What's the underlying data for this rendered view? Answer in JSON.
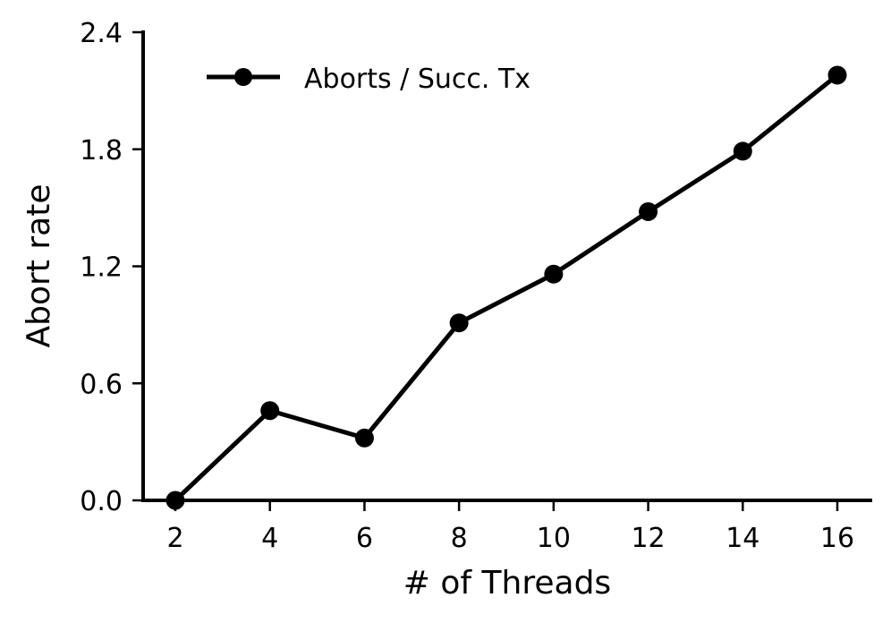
{
  "chart_data": {
    "type": "line",
    "title": "",
    "xlabel": "# of Threads",
    "ylabel": "Abort rate",
    "x": [
      2,
      4,
      6,
      8,
      10,
      12,
      14,
      16
    ],
    "series": [
      {
        "name": "Aborts / Succ. Tx",
        "values": [
          0.0,
          0.46,
          0.32,
          0.91,
          1.16,
          1.48,
          1.79,
          2.18
        ],
        "color": "#000000",
        "marker": "circle"
      }
    ],
    "xticks": [
      "2",
      "4",
      "6",
      "8",
      "10",
      "12",
      "14",
      "16"
    ],
    "yticks": [
      "0.0",
      "0.6",
      "1.2",
      "1.8",
      "2.4"
    ],
    "ylim": [
      0,
      2.4
    ],
    "xlim": [
      1.3,
      16.7
    ],
    "grid": false,
    "legend_position": "upper left",
    "spines": [
      "left",
      "bottom"
    ]
  }
}
